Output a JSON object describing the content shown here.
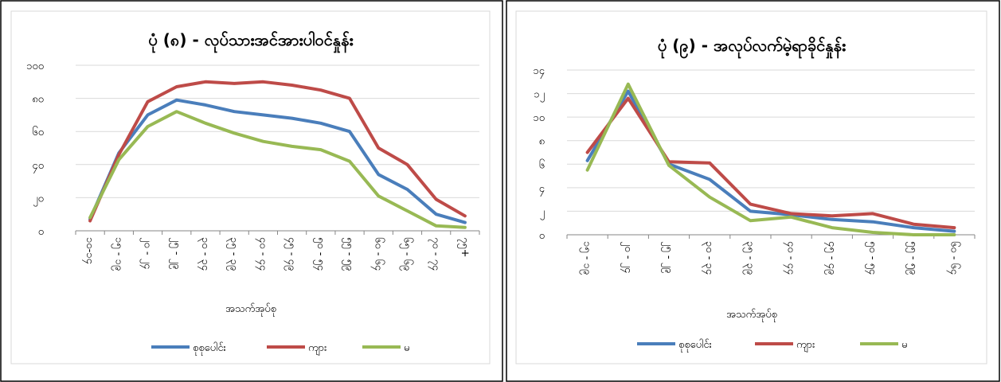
{
  "colors": {
    "total": "#4a7ebb",
    "male": "#be4b48",
    "female": "#98b954"
  },
  "chart_data": [
    {
      "type": "line",
      "title": "ပုံ (၈) - လုပ်သားအင်အားပါဝင်နှုန်း",
      "xlabel": "အသက်အုပ်စု",
      "ylabel": "",
      "ylim": [
        0,
        100
      ],
      "yticks": [
        0,
        20,
        40,
        60,
        80,
        100
      ],
      "ytick_labels": [
        "၀",
        "၂၀",
        "၄၀",
        "၆၀",
        "၈၀",
        "၁၀၀"
      ],
      "grid": true,
      "legend_position": "bottom",
      "categories": [
        "၁၀-၁၄",
        "၁၅ - ၁၉",
        "၂၀ - ၂၄",
        "၂၅ - ၂၉",
        "၃၀ - ၃၄",
        "၃၅ - ၃၉",
        "၄၀ - ၄၄",
        "၄၅ - ၄၉",
        "၅၀ - ၅၄",
        "၅၅ - ၅၉",
        "၆၀ - ၆၄",
        "၆၅ - ၆၉",
        "၇၀ - ၇၄",
        "၇၅+"
      ],
      "series": [
        {
          "name": "စုစုပေါင်း",
          "color_key": "total",
          "values": [
            7,
            47,
            70,
            79,
            76,
            72,
            70,
            68,
            65,
            60,
            34,
            25,
            10,
            5
          ]
        },
        {
          "name": "ကျား",
          "color_key": "male",
          "values": [
            6,
            46,
            78,
            87,
            90,
            89,
            90,
            88,
            85,
            80,
            50,
            40,
            19,
            9
          ]
        },
        {
          "name": "မ",
          "color_key": "female",
          "values": [
            8,
            43,
            63,
            72,
            65,
            59,
            54,
            51,
            49,
            42,
            21,
            12,
            3,
            2
          ]
        }
      ]
    },
    {
      "type": "line",
      "title": "ပုံ (၉) - အလုပ်လက်မဲ့ရာခိုင်နှုန်း",
      "xlabel": "အသက်အုပ်စု",
      "ylabel": "",
      "ylim": [
        0,
        14
      ],
      "yticks": [
        0,
        2,
        4,
        6,
        8,
        10,
        12,
        14
      ],
      "ytick_labels": [
        "၀",
        "၂",
        "၄",
        "၆",
        "၈",
        "၁၀",
        "၁၂",
        "၁၄"
      ],
      "grid": true,
      "legend_position": "bottom",
      "categories": [
        "၁၅ - ၁၉",
        "၂၀ - ၂၄",
        "၂၅ - ၂၉",
        "၃၀ - ၃၄",
        "၃၅ - ၃၉",
        "၄၀ - ၄၄",
        "၄၅ - ၄၉",
        "၅၀ - ၅၄",
        "၅၅ - ၅၉",
        "၆၀ - ၆၄"
      ],
      "series": [
        {
          "name": "စုစုပေါင်း",
          "color_key": "total",
          "values": [
            6.3,
            12.2,
            6.0,
            4.7,
            2.0,
            1.7,
            1.3,
            1.1,
            0.6,
            0.3
          ]
        },
        {
          "name": "ကျား",
          "color_key": "male",
          "values": [
            7.0,
            11.6,
            6.2,
            6.1,
            2.6,
            1.8,
            1.6,
            1.8,
            0.9,
            0.6
          ]
        },
        {
          "name": "မ",
          "color_key": "female",
          "values": [
            5.5,
            12.8,
            5.9,
            3.2,
            1.2,
            1.5,
            0.6,
            0.2,
            0.0,
            0.0
          ]
        }
      ]
    }
  ]
}
